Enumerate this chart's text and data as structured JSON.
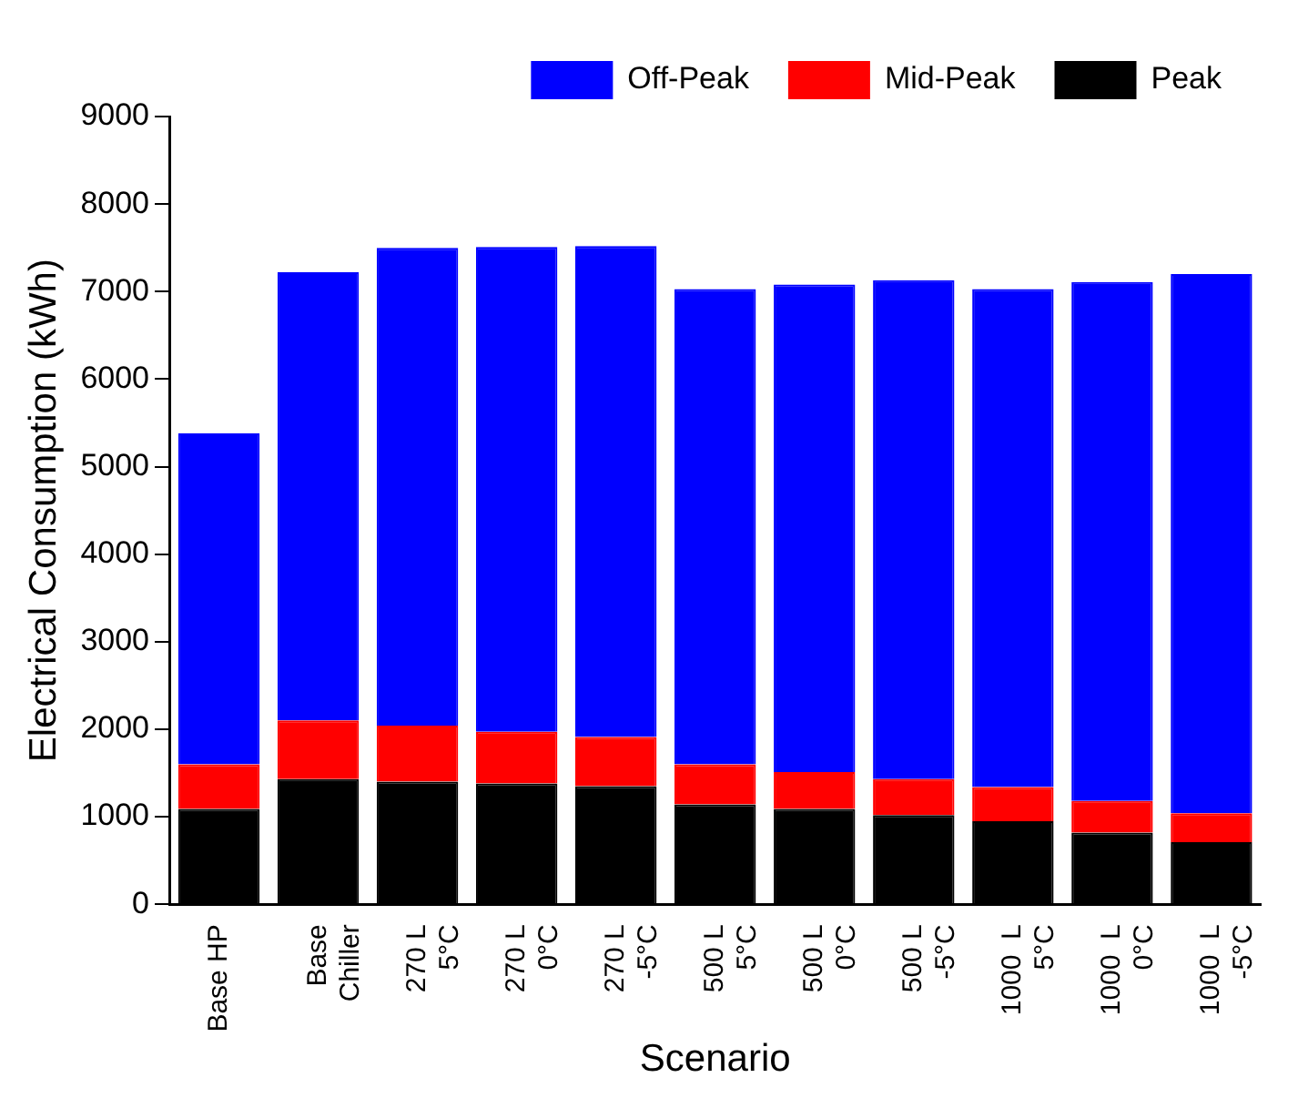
{
  "chart_data": {
    "type": "bar",
    "xlabel": "Scenario",
    "ylabel": "Electrical Consumption (kWh)",
    "stacked": true,
    "categories": [
      "Base HP",
      "Base\nChiller",
      "270 L\n5°C",
      "270 L\n0°C",
      "270 L\n-5°C",
      "500 L\n5°C",
      "500 L\n0°C",
      "500 L\n-5°C",
      "1000  L\n5°C",
      "1000  L\n0°C",
      "1000  L\n-5°C"
    ],
    "series": [
      {
        "name": "Peak",
        "color": "#000000",
        "values": [
          1090,
          1430,
          1400,
          1380,
          1350,
          1140,
          1090,
          1020,
          950,
          820,
          710
        ]
      },
      {
        "name": "Mid-Peak",
        "color": "#ff0000",
        "values": [
          510,
          670,
          640,
          590,
          560,
          460,
          420,
          410,
          390,
          360,
          330
        ]
      },
      {
        "name": "Off-Peak",
        "color": "#0000ff",
        "values": [
          3780,
          5120,
          5460,
          5540,
          5610,
          5430,
          5570,
          5700,
          5690,
          5930,
          6160
        ]
      }
    ],
    "ylim": [
      0,
      9000
    ],
    "yticks": [
      0,
      1000,
      2000,
      3000,
      4000,
      5000,
      6000,
      7000,
      8000,
      9000
    ],
    "grid": false,
    "legend": "top right"
  }
}
